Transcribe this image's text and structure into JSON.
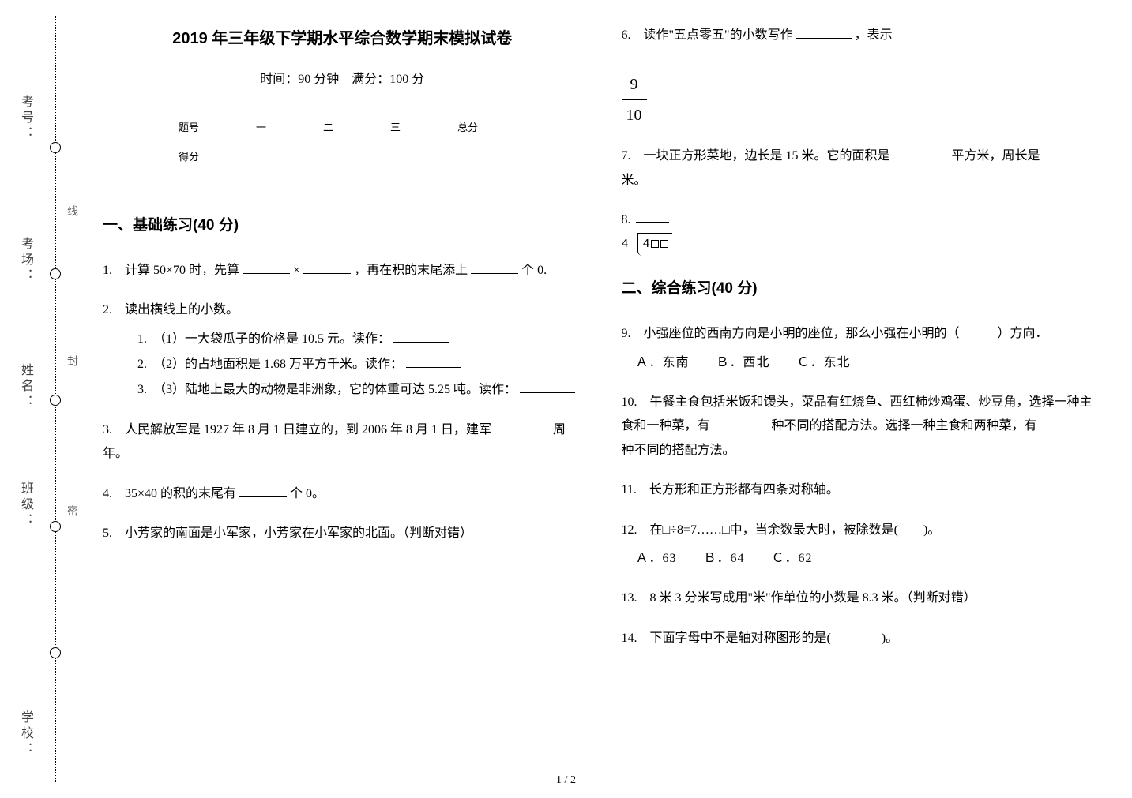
{
  "binding": {
    "labels": [
      "考号：",
      "考场：",
      "姓名：",
      "班级：",
      "学校："
    ],
    "seal_chars": [
      "线",
      "封",
      "密"
    ]
  },
  "header": {
    "title": "2019 年三年级下学期水平综合数学期末模拟试卷",
    "subtitle": "时间：90 分钟　满分：100 分"
  },
  "score_table": {
    "columns": [
      "题号",
      "一",
      "二",
      "三",
      "总分"
    ],
    "score_row_label": "得分"
  },
  "sections": [
    {
      "head": "一、基础练习(40 分)"
    },
    {
      "head": "二、综合练习(40 分)"
    }
  ],
  "questions": {
    "q1": {
      "pre": "1.　计算 50×70 时，先算",
      "mid1": "×",
      "mid2": "，再在积的末尾添上",
      "post": "个 0."
    },
    "q2": {
      "text": "2.　读出横线上的小数。",
      "items": [
        "1.　（1）一大袋瓜子的价格是 10.5 元。读作：",
        "2.　（2）的占地面积是 1.68 万平方千米。读作：",
        "3.　（3）陆地上最大的动物是非洲象，它的体重可达 5.25 吨。读作："
      ]
    },
    "q3": {
      "pre": "3.　人民解放军是 1927 年 8 月 1 日建立的，到 2006 年 8 月 1 日，建军",
      "post": "周年。"
    },
    "q4": {
      "pre": "4.　35×40 的积的末尾有",
      "post": "个 0。"
    },
    "q5": {
      "text": "5.　小芳家的南面是小军家，小芳家在小军家的北面。（判断对错）"
    },
    "q6": {
      "pre": "6.　读作\"五点零五\"的小数写作",
      "post": "，表示"
    },
    "fraction": {
      "num": "9",
      "den": "10"
    },
    "q7": {
      "pre": "7.　一块正方形菜地，边长是 15 米。它的面积是",
      "mid": "平方米，周长是",
      "post": "米。"
    },
    "q8": {
      "text": "8."
    },
    "longdiv": {
      "divisor": "4",
      "dividend_first": "4"
    },
    "q9": {
      "text": "9.　小强座位的西南方向是小明的座位，那么小强在小明的（　　　）方向．",
      "options": "Ａ．东南　　Ｂ．西北　　Ｃ．东北"
    },
    "q10": {
      "pre": "10.　午餐主食包括米饭和馒头，菜品有红烧鱼、西红柿炒鸡蛋、炒豆角，选择一种主食和一种菜，有",
      "mid": "种不同的搭配方法。选择一种主食和两种菜，有",
      "post": "种不同的搭配方法。"
    },
    "q11": {
      "text": "11.　长方形和正方形都有四条对称轴。"
    },
    "q12": {
      "text": "12.　在□÷8=7……□中，当余数最大时，被除数是(　　)。",
      "options": "Ａ．63　　Ｂ．64　　Ｃ．62"
    },
    "q13": {
      "text": "13.　8 米 3 分米写成用\"米\"作单位的小数是 8.3 米。（判断对错）"
    },
    "q14": {
      "text": "14.　下面字母中不是轴对称图形的是(　　　　)。"
    }
  },
  "page_num": "1 / 2"
}
